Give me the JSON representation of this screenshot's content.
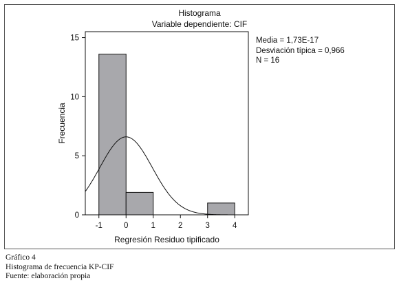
{
  "chart_data": {
    "type": "bar",
    "title": "Histograma",
    "subtitle": "Variable dependiente: CIF",
    "xlabel": "Regresión Residuo tipificado",
    "ylabel": "Frecuencia",
    "xlim": [
      -1.5,
      4.5
    ],
    "ylim": [
      0,
      15.5
    ],
    "xticks": [
      -1,
      0,
      1,
      2,
      3,
      4
    ],
    "yticks": [
      0,
      5,
      10,
      15
    ],
    "bins": [
      {
        "from": -1,
        "to": 0,
        "value": 13.6
      },
      {
        "from": 0,
        "to": 1,
        "value": 1.9
      },
      {
        "from": 3,
        "to": 4,
        "value": 1.0
      }
    ],
    "normal_curve": {
      "mean": 0,
      "sd": 0.966,
      "peak": 6.6
    },
    "bar_color": "#a8a8ac",
    "grid": false
  },
  "stats": {
    "media": "Media = 1,73E-17",
    "desviacion": "Desviación típica = 0,966",
    "n": "N = 16"
  },
  "caption": {
    "line1": "Gráfico 4",
    "line2": "Histograma de frecuencia KP-CIF",
    "line3": "Fuente: elaboración propia"
  }
}
